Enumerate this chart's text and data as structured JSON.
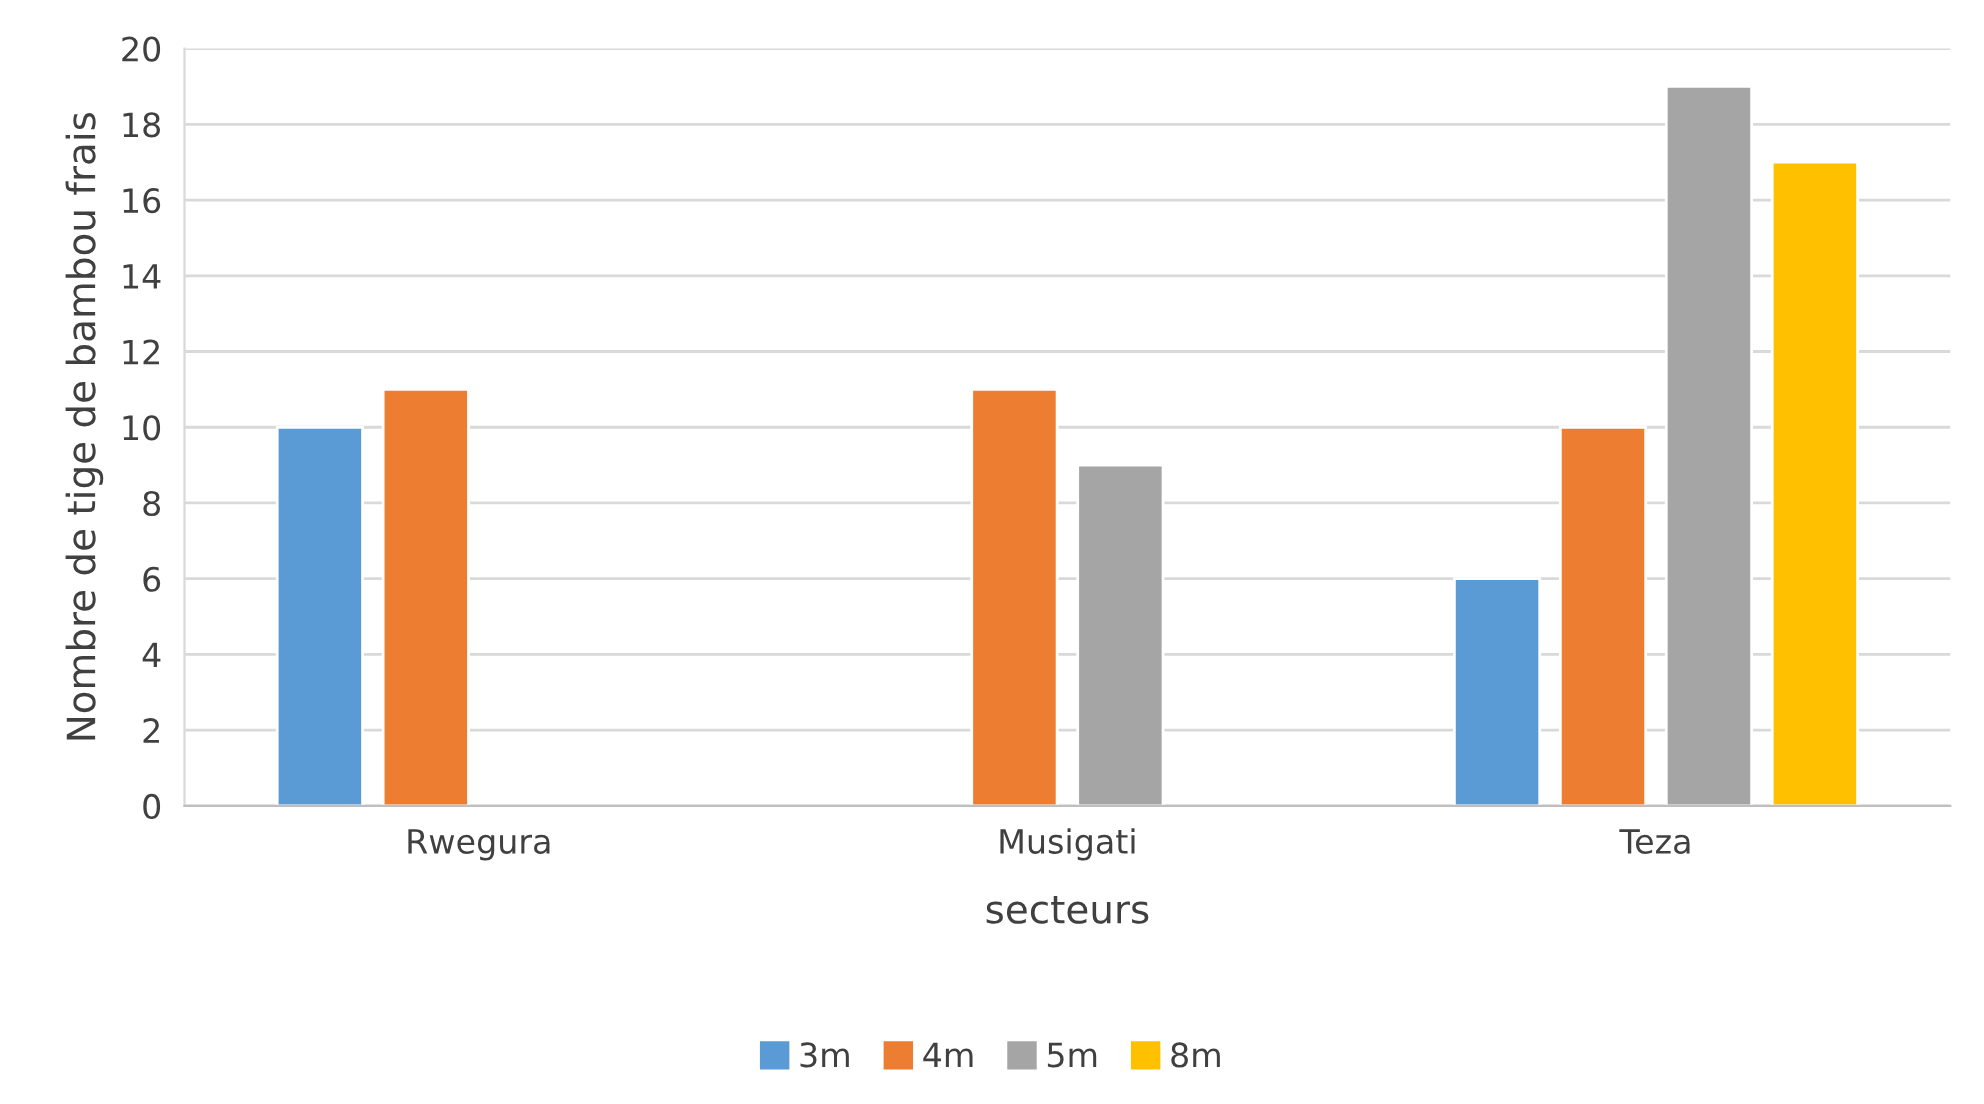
{
  "chart_data": {
    "type": "bar",
    "xlabel": "secteurs",
    "ylabel": "Nombre de tige de bambou frais",
    "categories": [
      "Rwegura",
      "Musigati",
      "Teza"
    ],
    "series": [
      {
        "name": "3m",
        "color": "#5b9bd5",
        "values": [
          10,
          null,
          6
        ]
      },
      {
        "name": "4m",
        "color": "#ed7d31",
        "values": [
          11,
          11,
          10
        ]
      },
      {
        "name": "5m",
        "color": "#a5a5a5",
        "values": [
          null,
          9,
          19
        ]
      },
      {
        "name": "8m",
        "color": "#ffc000",
        "values": [
          null,
          null,
          17
        ]
      }
    ],
    "ylim": [
      0,
      20
    ],
    "yticks": [
      0,
      2,
      4,
      6,
      8,
      10,
      12,
      14,
      16,
      18,
      20
    ],
    "grid": "y",
    "legend": "bottom"
  }
}
